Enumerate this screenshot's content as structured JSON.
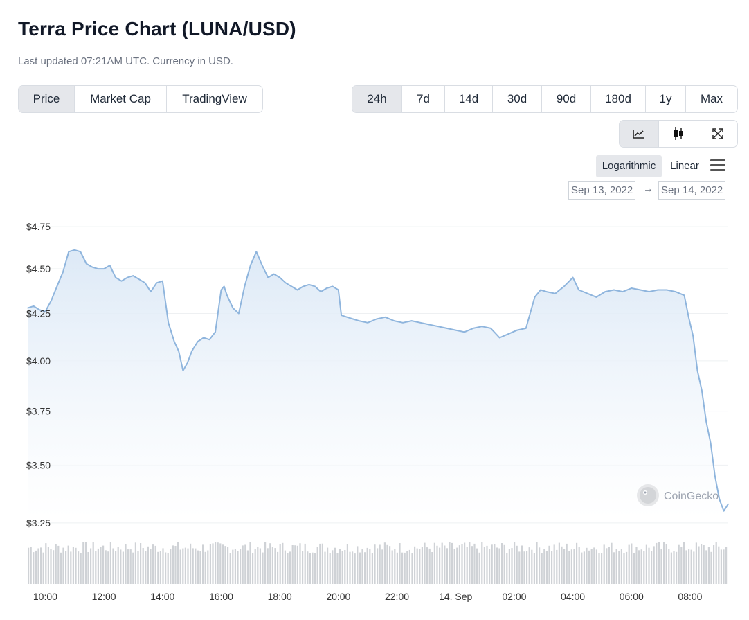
{
  "header": {
    "title": "Terra Price Chart (LUNA/USD)",
    "subtitle": "Last updated 07:21AM UTC. Currency in USD."
  },
  "view_tabs": [
    "Price",
    "Market Cap",
    "TradingView"
  ],
  "active_view_tab": "Price",
  "range_tabs": [
    "24h",
    "7d",
    "14d",
    "30d",
    "90d",
    "180d",
    "1y",
    "Max"
  ],
  "active_range_tab": "24h",
  "chart_tools": [
    {
      "icon": "line-chart-icon",
      "active": true
    },
    {
      "icon": "candlestick-icon",
      "active": false
    },
    {
      "icon": "expand-icon",
      "active": false
    }
  ],
  "scale_options": {
    "logarithmic": "Logarithmic",
    "linear": "Linear",
    "active": "Logarithmic"
  },
  "date_range": {
    "from": "Sep 13, 2022",
    "arrow": "→",
    "to": "Sep 14, 2022"
  },
  "watermark": "CoinGecko",
  "colors": {
    "line": "#8fb5dd",
    "area_top": "#dbe8f6",
    "volume": "#cfd2d6",
    "grid": "#eef0f2"
  },
  "chart_data": {
    "type": "line",
    "title": "",
    "xlabel": "",
    "ylabel": "",
    "y_scale": "log",
    "ylim": [
      3.27,
      4.78
    ],
    "y_ticks": [
      "$4.75",
      "$4.50",
      "$4.25",
      "$4.00",
      "$3.75",
      "$3.50",
      "$3.25"
    ],
    "y_tick_values": [
      4.75,
      4.5,
      4.25,
      4.0,
      3.75,
      3.5,
      3.25
    ],
    "x_ticks": [
      "10:00",
      "12:00",
      "14:00",
      "16:00",
      "18:00",
      "20:00",
      "22:00",
      "14. Sep",
      "02:00",
      "04:00",
      "06:00",
      "08:00"
    ],
    "x_tick_hours": [
      10,
      12,
      14,
      16,
      18,
      20,
      22,
      24,
      26,
      28,
      30,
      32
    ],
    "x_range_hours": [
      9.4,
      33.3
    ],
    "grid": true,
    "legend": "none",
    "series": [
      {
        "x": [
          9.4,
          9.6,
          9.8,
          10.0,
          10.2,
          10.4,
          10.6,
          10.8,
          11.0,
          11.2,
          11.4,
          11.6,
          11.8,
          12.0,
          12.2,
          12.4,
          12.6,
          12.8,
          13.0,
          13.2,
          13.4,
          13.6,
          13.8,
          14.0,
          14.2,
          14.4,
          14.55,
          14.7,
          14.85,
          15.0,
          15.2,
          15.4,
          15.6,
          15.8,
          16.0,
          16.1,
          16.2,
          16.4,
          16.6,
          16.8,
          17.0,
          17.2,
          17.4,
          17.6,
          17.8,
          18.0,
          18.2,
          18.4,
          18.6,
          18.8,
          19.0,
          19.2,
          19.4,
          19.6,
          19.8,
          20.0,
          20.1,
          20.3,
          20.5,
          20.7,
          21.0,
          21.3,
          21.6,
          21.9,
          22.2,
          22.5,
          22.8,
          23.1,
          23.4,
          23.7,
          24.0,
          24.3,
          24.6,
          24.9,
          25.2,
          25.5,
          25.8,
          26.1,
          26.4,
          26.7,
          26.9,
          27.1,
          27.4,
          27.7,
          28.0,
          28.2,
          28.5,
          28.8,
          29.1,
          29.4,
          29.7,
          30.0,
          30.3,
          30.6,
          30.9,
          31.2,
          31.5,
          31.8,
          31.95,
          32.1,
          32.25,
          32.4,
          32.55,
          32.7,
          32.85,
          33.0,
          33.15,
          33.3
        ],
        "y": [
          4.28,
          4.29,
          4.27,
          4.26,
          4.32,
          4.4,
          4.48,
          4.6,
          4.61,
          4.6,
          4.53,
          4.51,
          4.5,
          4.5,
          4.52,
          4.45,
          4.43,
          4.45,
          4.46,
          4.44,
          4.42,
          4.37,
          4.42,
          4.43,
          4.2,
          4.1,
          4.05,
          3.95,
          3.99,
          4.05,
          4.1,
          4.12,
          4.11,
          4.15,
          4.38,
          4.4,
          4.35,
          4.28,
          4.25,
          4.4,
          4.52,
          4.6,
          4.52,
          4.45,
          4.47,
          4.45,
          4.42,
          4.4,
          4.38,
          4.4,
          4.41,
          4.4,
          4.37,
          4.39,
          4.4,
          4.38,
          4.24,
          4.23,
          4.22,
          4.21,
          4.2,
          4.22,
          4.23,
          4.21,
          4.2,
          4.21,
          4.2,
          4.19,
          4.18,
          4.17,
          4.16,
          4.15,
          4.17,
          4.18,
          4.17,
          4.12,
          4.14,
          4.16,
          4.17,
          4.34,
          4.38,
          4.37,
          4.36,
          4.4,
          4.45,
          4.38,
          4.36,
          4.34,
          4.37,
          4.38,
          4.37,
          4.39,
          4.38,
          4.37,
          4.38,
          4.38,
          4.37,
          4.35,
          4.23,
          4.13,
          3.95,
          3.85,
          3.7,
          3.6,
          3.45,
          3.35,
          3.3,
          3.33
        ]
      }
    ]
  }
}
